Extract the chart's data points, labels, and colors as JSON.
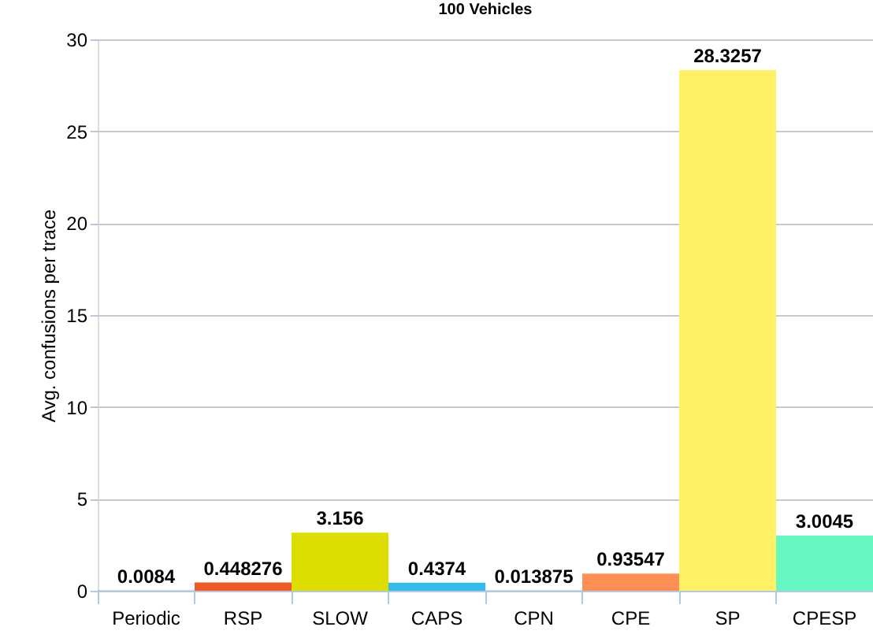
{
  "chart_data": {
    "type": "bar",
    "title": "100 Vehicles",
    "ylabel": "Avg. confusions per trace",
    "categories": [
      "Periodic",
      "RSP",
      "SLOW",
      "CAPS",
      "CPN",
      "CPE",
      "SP",
      "CPESP"
    ],
    "values": [
      0.0084,
      0.448276,
      3.156,
      0.4374,
      0.013875,
      0.93547,
      28.3257,
      3.0045
    ],
    "colors": [
      "#3366cc",
      "#f05a28",
      "#dddd00",
      "#33bbee",
      "#3366cc",
      "#ff9055",
      "#fff066",
      "#66f8c0"
    ],
    "ylim": [
      0,
      30
    ],
    "yticks": [
      0,
      5,
      10,
      15,
      20,
      25,
      30
    ],
    "grid": "y",
    "data_labels": true
  }
}
